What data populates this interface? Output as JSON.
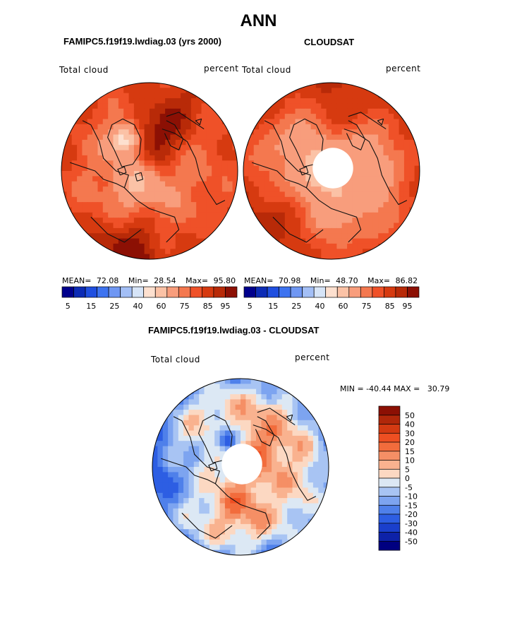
{
  "page": {
    "main_title": "ANN",
    "diff_title": "FAMIPC5.f19f19.lwdiag.03 - CLOUDSAT"
  },
  "chart_data": [
    {
      "type": "heatmap",
      "projection": "north polar stereographic",
      "title": "FAMIPC5.f19f19.lwdiag.03 (yrs 2000)",
      "left_label": "Total cloud",
      "right_label": "percent",
      "stats": {
        "mean_label": "MEAN=",
        "mean": "72.08",
        "min_label": "Min=",
        "min": "28.54",
        "max_label": "Max=",
        "max": "95.80"
      },
      "colorbar": {
        "orientation": "horizontal",
        "tick_labels": [
          "5",
          "15",
          "25",
          "40",
          "60",
          "75",
          "85",
          "95"
        ],
        "colors": [
          "#00008c",
          "#0c2bb5",
          "#1f4fe0",
          "#3d73f0",
          "#6f97f3",
          "#a3bff6",
          "#d6e4f7",
          "#fde0cf",
          "#fbc2a6",
          "#f89d7c",
          "#f4784f",
          "#ef5128",
          "#d63a10",
          "#b82a08",
          "#8c1004"
        ]
      },
      "colormap_min": 0,
      "colormap_max": 100
    },
    {
      "type": "heatmap",
      "projection": "north polar stereographic",
      "title": "CLOUDSAT",
      "left_label": "Total cloud",
      "right_label": "percent",
      "stats": {
        "mean_label": "MEAN=",
        "mean": "70.98",
        "min_label": "Min=",
        "min": "48.70",
        "max_label": "Max=",
        "max": "86.82"
      },
      "colorbar": {
        "orientation": "horizontal",
        "tick_labels": [
          "5",
          "15",
          "25",
          "40",
          "60",
          "75",
          "85",
          "95"
        ],
        "colors": [
          "#00008c",
          "#0c2bb5",
          "#1f4fe0",
          "#3d73f0",
          "#6f97f3",
          "#a3bff6",
          "#d6e4f7",
          "#fde0cf",
          "#fbc2a6",
          "#f89d7c",
          "#f4784f",
          "#ef5128",
          "#d63a10",
          "#b82a08",
          "#8c1004"
        ]
      },
      "colormap_min": 0,
      "colormap_max": 100
    },
    {
      "type": "heatmap",
      "projection": "north polar stereographic",
      "title": "FAMIPC5.f19f19.lwdiag.03 - CLOUDSAT",
      "left_label": "Total cloud",
      "right_label": "percent",
      "minmax_text": "MIN = -40.44 MAX =   30.79",
      "colorbar": {
        "orientation": "vertical",
        "tick_labels": [
          "50",
          "40",
          "30",
          "20",
          "15",
          "10",
          "5",
          "0",
          "-5",
          "-10",
          "-15",
          "-20",
          "-30",
          "-40",
          "-50"
        ],
        "colors": [
          "#8c1004",
          "#b0270a",
          "#d33a12",
          "#ed4f22",
          "#f26c3c",
          "#f58f65",
          "#f9b28f",
          "#fcd8c2",
          "#dce8f4",
          "#a8c4f3",
          "#7da4f0",
          "#4f80ea",
          "#2d5ee3",
          "#1a3fcc",
          "#0d22a8",
          "#000080"
        ]
      },
      "colormap_min": -50,
      "colormap_max": 50
    }
  ]
}
